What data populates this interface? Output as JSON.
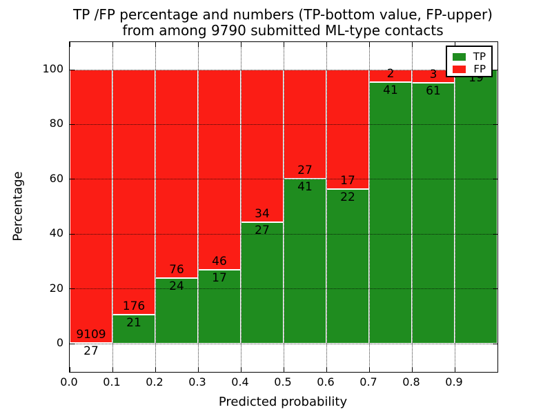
{
  "chart_data": {
    "type": "bar",
    "stacked": true,
    "orientation": "vertical",
    "title_lines": [
      "TP /FP percentage and numbers (TP-bottom value, FP-upper)",
      "from among 9790 submitted ML-type contacts"
    ],
    "xlabel": "Predicted probability",
    "ylabel": "Percentage",
    "x_tick_labels": [
      "0.0",
      "0.1",
      "0.2",
      "0.3",
      "0.4",
      "0.5",
      "0.6",
      "0.7",
      "0.8",
      "0.9"
    ],
    "y_ticks": [
      0,
      20,
      40,
      60,
      80,
      100
    ],
    "xlim": [
      0.0,
      1.0
    ],
    "ylim_display": [
      -10.5,
      110.5
    ],
    "bar_width": 0.1,
    "grid": "dotted, drawn over bars",
    "legend_position": "upper right",
    "note": "each bar normalized to 100%; TP count shown below segment boundary, FP count above it",
    "legend": [
      {
        "name": "TP",
        "color": "#1f8c1f"
      },
      {
        "name": "FP",
        "color": "#fb1d15"
      }
    ],
    "bins": [
      {
        "x0": 0.0,
        "x1": 0.1,
        "tp": 27,
        "fp": 9109,
        "tp_percent": 0.3
      },
      {
        "x0": 0.1,
        "x1": 0.2,
        "tp": 21,
        "fp": 176,
        "tp_percent": 10.66
      },
      {
        "x0": 0.2,
        "x1": 0.3,
        "tp": 24,
        "fp": 76,
        "tp_percent": 24.0
      },
      {
        "x0": 0.3,
        "x1": 0.4,
        "tp": 17,
        "fp": 46,
        "tp_percent": 26.98
      },
      {
        "x0": 0.4,
        "x1": 0.5,
        "tp": 27,
        "fp": 34,
        "tp_percent": 44.26
      },
      {
        "x0": 0.5,
        "x1": 0.6,
        "tp": 41,
        "fp": 27,
        "tp_percent": 60.29
      },
      {
        "x0": 0.6,
        "x1": 0.7,
        "tp": 22,
        "fp": 17,
        "tp_percent": 56.41
      },
      {
        "x0": 0.7,
        "x1": 0.8,
        "tp": 41,
        "fp": 2,
        "tp_percent": 95.35
      },
      {
        "x0": 0.8,
        "x1": 0.9,
        "tp": 61,
        "fp": 3,
        "tp_percent": 95.31
      },
      {
        "x0": 0.9,
        "x1": 1.0,
        "tp": 19,
        "fp": 0,
        "tp_percent": 100.0
      }
    ]
  }
}
